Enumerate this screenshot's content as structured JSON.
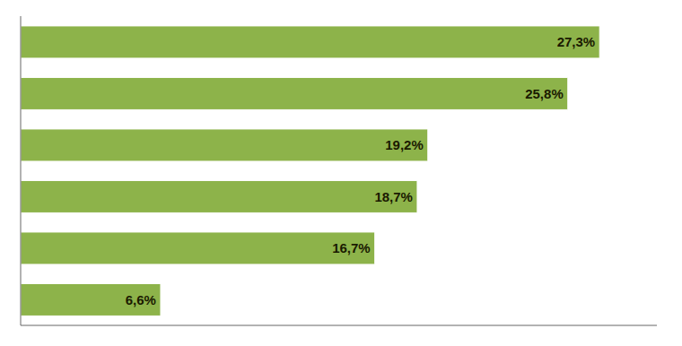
{
  "chart_data": {
    "type": "bar",
    "orientation": "horizontal",
    "categories": [
      null,
      null,
      null,
      null,
      null,
      null
    ],
    "values": [
      27.3,
      25.8,
      19.2,
      18.7,
      16.7,
      6.6
    ],
    "value_labels": [
      "27,3%",
      "25,8%",
      "19,2%",
      "18,7%",
      "16,7%",
      "6,6%"
    ],
    "data_labels": true,
    "color": "#8db34a",
    "xlim": [
      0,
      30
    ],
    "tick_labels": false
  }
}
